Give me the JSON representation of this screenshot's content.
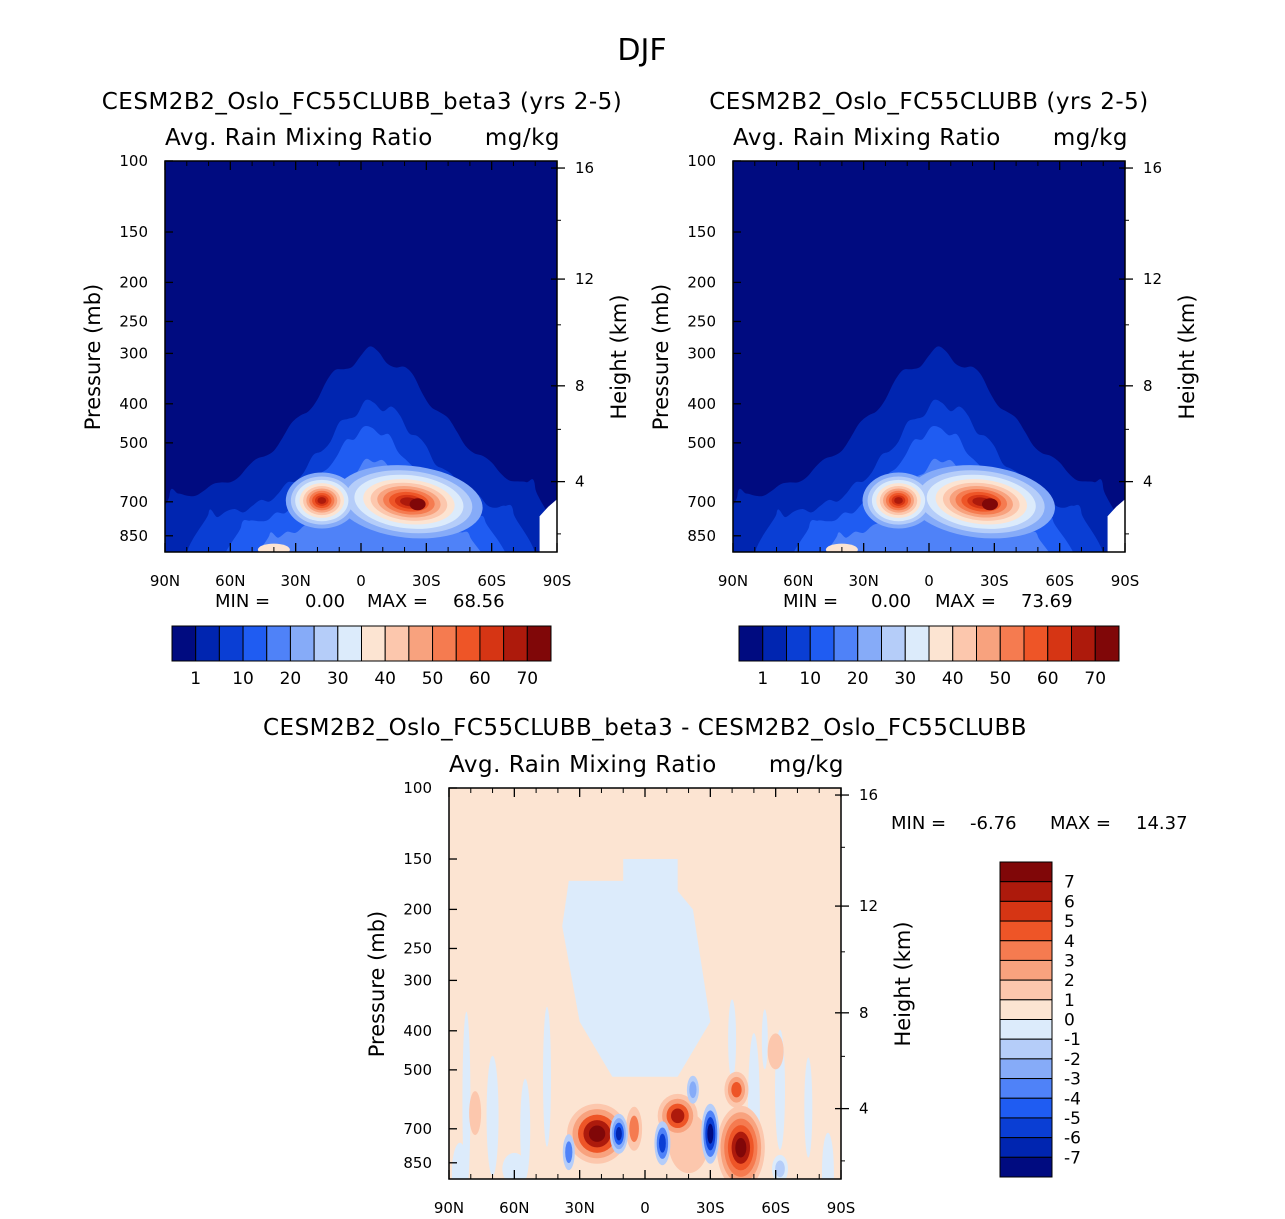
{
  "figure_title": "DJF",
  "chart_data": [
    {
      "type": "heatmap",
      "panel": "test",
      "title": "CESM2B2_Oslo_FC55CLUBB_beta3 (yrs 2-5)",
      "subtitle_left": "Avg. Rain Mixing Ratio",
      "subtitle_right": "mg/kg",
      "xlabel": "",
      "ylabel": "Pressure (mb)",
      "ylabel_right": "Height (km)",
      "x_tick_labels": [
        "90N",
        "60N",
        "30N",
        "0",
        "30S",
        "60S",
        "90S"
      ],
      "y_tick_labels": [
        "100",
        "150",
        "200",
        "250",
        "300",
        "400",
        "500",
        "700",
        "850"
      ],
      "height_tick_labels": [
        "16",
        "12",
        "8",
        "4"
      ],
      "min_label": "MIN =",
      "min_value": "0.00",
      "max_label": "MAX =",
      "max_value": "68.56",
      "colorbar_labels": [
        "1",
        "10",
        "20",
        "30",
        "40",
        "50",
        "60",
        "70"
      ],
      "features": [
        {
          "lat": -27,
          "p": 700,
          "peak": 68.56
        },
        {
          "lat": 10,
          "p": 690,
          "peak": 52
        }
      ]
    },
    {
      "type": "heatmap",
      "panel": "control",
      "title": "CESM2B2_Oslo_FC55CLUBB (yrs 2-5)",
      "subtitle_left": "Avg. Rain Mixing Ratio",
      "subtitle_right": "mg/kg",
      "xlabel": "",
      "ylabel": "Pressure (mb)",
      "ylabel_right": "Height (km)",
      "x_tick_labels": [
        "90N",
        "60N",
        "30N",
        "0",
        "30S",
        "60S",
        "90S"
      ],
      "y_tick_labels": [
        "100",
        "150",
        "200",
        "250",
        "300",
        "400",
        "500",
        "700",
        "850"
      ],
      "height_tick_labels": [
        "16",
        "12",
        "8",
        "4"
      ],
      "min_label": "MIN =",
      "min_value": "0.00",
      "max_label": "MAX =",
      "max_value": "73.69",
      "colorbar_labels": [
        "1",
        "10",
        "20",
        "30",
        "40",
        "50",
        "60",
        "70"
      ],
      "features": [
        {
          "lat": -33,
          "p": 700,
          "peak": 73.69
        },
        {
          "lat": 12,
          "p": 700,
          "peak": 48
        }
      ]
    },
    {
      "type": "heatmap",
      "panel": "difference",
      "title": "CESM2B2_Oslo_FC55CLUBB_beta3 - CESM2B2_Oslo_FC55CLUBB",
      "subtitle_left": "Avg. Rain Mixing Ratio",
      "subtitle_right": "mg/kg",
      "xlabel": "",
      "ylabel": "Pressure (mb)",
      "ylabel_right": "Height (km)",
      "x_tick_labels": [
        "90N",
        "60N",
        "30N",
        "0",
        "30S",
        "60S",
        "90S"
      ],
      "y_tick_labels": [
        "100",
        "150",
        "200",
        "250",
        "300",
        "400",
        "500",
        "700",
        "850"
      ],
      "height_tick_labels": [
        "16",
        "12",
        "8",
        "4"
      ],
      "min_label": "MIN =",
      "min_value": "-6.76",
      "max_label": "MAX =",
      "max_value": "14.37",
      "colorbar_labels": [
        "7",
        "6",
        "5",
        "4",
        "3",
        "2",
        "1",
        "0",
        "-1",
        "-2",
        "-3",
        "-4",
        "-5",
        "-6",
        "-7"
      ],
      "features": [
        {
          "lat": 22,
          "p": 720,
          "value": 14.37
        },
        {
          "lat": -43,
          "p": 790,
          "value": 12
        },
        {
          "lat": -15,
          "p": 650,
          "value": 8
        },
        {
          "lat": -30,
          "p": 720,
          "value": -6.76
        }
      ]
    }
  ],
  "colors": {
    "seq": [
      "#000b80",
      "#0025b0",
      "#0a3ed4",
      "#1f5cf2",
      "#4f82f8",
      "#86abf8",
      "#b5cdf9",
      "#dcebfb",
      "#fce4d2",
      "#fcc7ad",
      "#f8a27e",
      "#f57b50",
      "#ee5527",
      "#d63514",
      "#ad1a0c",
      "#800708"
    ],
    "div": [
      "#800708",
      "#ad1a0c",
      "#d63514",
      "#ee5527",
      "#f57b50",
      "#f8a27e",
      "#fcc7ad",
      "#fce4d2",
      "#dcebfb",
      "#b5cdf9",
      "#86abf8",
      "#4f82f8",
      "#1f5cf2",
      "#0a3ed4",
      "#0025b0",
      "#000b80"
    ]
  }
}
